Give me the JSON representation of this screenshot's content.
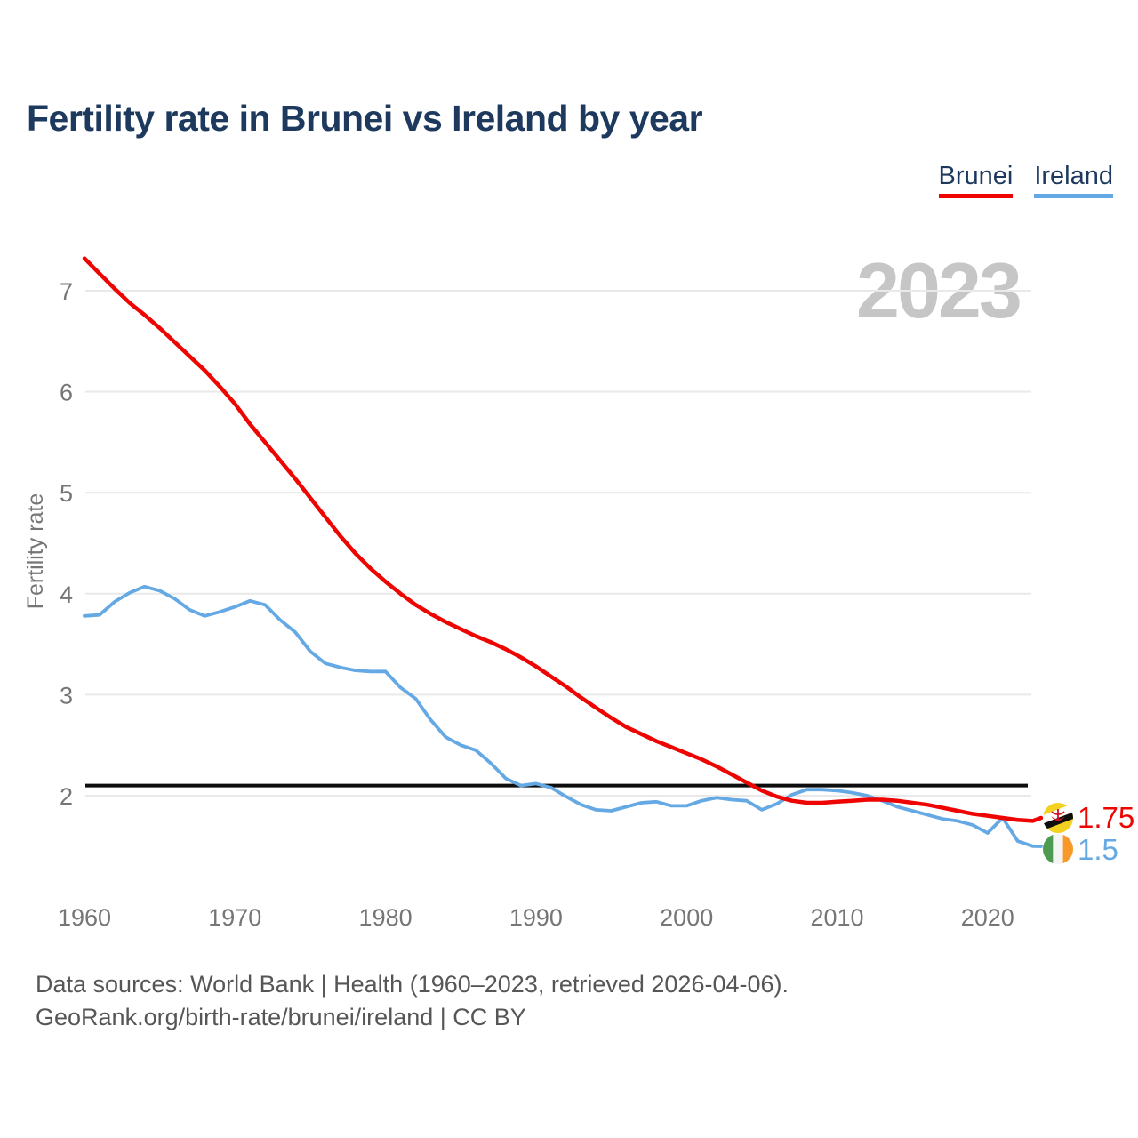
{
  "title": "Fertility rate in Brunei vs Ireland by year",
  "watermark_year": "2023",
  "legend": {
    "brunei_label": "Brunei",
    "ireland_label": "Ireland"
  },
  "colors": {
    "brunei": "#ee0400",
    "ireland": "#64a8e4",
    "title_text": "#1d3a5e",
    "axis_text": "#767676",
    "gridline": "#e9e9e9",
    "reference_line": "#0d0d0d",
    "watermark": "#c6c6c6",
    "footer_text": "#565656"
  },
  "icons": {
    "brunei_flag": "brunei-flag-icon",
    "ireland_flag": "ireland-flag-icon"
  },
  "end_labels": {
    "brunei_value": "1.75",
    "ireland_value": "1.5"
  },
  "footer": {
    "line1": "Data sources: World Bank | Health (1960–2023, retrieved 2026-04-06).",
    "line2": "GeoRank.org/birth-rate/brunei/ireland | CC BY"
  },
  "chart_data": {
    "type": "line",
    "title": "Fertility rate in Brunei vs Ireland by year",
    "xlabel": "",
    "ylabel": "Fertility rate",
    "xticks": [
      1960,
      1970,
      1980,
      1990,
      2000,
      2010,
      2020
    ],
    "yticks": [
      2,
      3,
      4,
      5,
      6,
      7
    ],
    "ylim": [
      1.35,
      7.45
    ],
    "xlim": [
      1960,
      2023
    ],
    "grid": "horizontal",
    "legend_position": "top-right",
    "reference_line_y": 2.1,
    "x": [
      1960,
      1961,
      1962,
      1963,
      1964,
      1965,
      1966,
      1967,
      1968,
      1969,
      1970,
      1971,
      1972,
      1973,
      1974,
      1975,
      1976,
      1977,
      1978,
      1979,
      1980,
      1981,
      1982,
      1983,
      1984,
      1985,
      1986,
      1987,
      1988,
      1989,
      1990,
      1991,
      1992,
      1993,
      1994,
      1995,
      1996,
      1997,
      1998,
      1999,
      2000,
      2001,
      2002,
      2003,
      2004,
      2005,
      2006,
      2007,
      2008,
      2009,
      2010,
      2011,
      2012,
      2013,
      2014,
      2015,
      2016,
      2017,
      2018,
      2019,
      2020,
      2021,
      2022,
      2023
    ],
    "series": [
      {
        "name": "Brunei",
        "color": "#ee0400",
        "values": [
          7.32,
          7.17,
          7.02,
          6.88,
          6.76,
          6.63,
          6.49,
          6.35,
          6.21,
          6.05,
          5.88,
          5.68,
          5.5,
          5.32,
          5.14,
          4.95,
          4.76,
          4.57,
          4.4,
          4.25,
          4.12,
          4.0,
          3.89,
          3.8,
          3.72,
          3.65,
          3.58,
          3.52,
          3.45,
          3.37,
          3.28,
          3.18,
          3.08,
          2.97,
          2.87,
          2.77,
          2.68,
          2.61,
          2.54,
          2.48,
          2.42,
          2.36,
          2.29,
          2.21,
          2.13,
          2.05,
          1.99,
          1.95,
          1.93,
          1.93,
          1.94,
          1.95,
          1.96,
          1.96,
          1.95,
          1.93,
          1.91,
          1.88,
          1.85,
          1.82,
          1.8,
          1.78,
          1.76,
          1.75
        ]
      },
      {
        "name": "Ireland",
        "color": "#64a8e4",
        "values": [
          3.78,
          3.79,
          3.92,
          4.01,
          4.07,
          4.03,
          3.95,
          3.84,
          3.78,
          3.82,
          3.87,
          3.93,
          3.89,
          3.74,
          3.62,
          3.43,
          3.31,
          3.27,
          3.24,
          3.23,
          3.23,
          3.07,
          2.96,
          2.75,
          2.58,
          2.5,
          2.45,
          2.32,
          2.17,
          2.1,
          2.12,
          2.08,
          1.99,
          1.91,
          1.86,
          1.85,
          1.89,
          1.93,
          1.94,
          1.9,
          1.9,
          1.95,
          1.98,
          1.96,
          1.95,
          1.86,
          1.92,
          2.01,
          2.06,
          2.06,
          2.05,
          2.03,
          2.0,
          1.95,
          1.89,
          1.85,
          1.81,
          1.77,
          1.75,
          1.71,
          1.63,
          1.78,
          1.55,
          1.5
        ]
      }
    ]
  }
}
